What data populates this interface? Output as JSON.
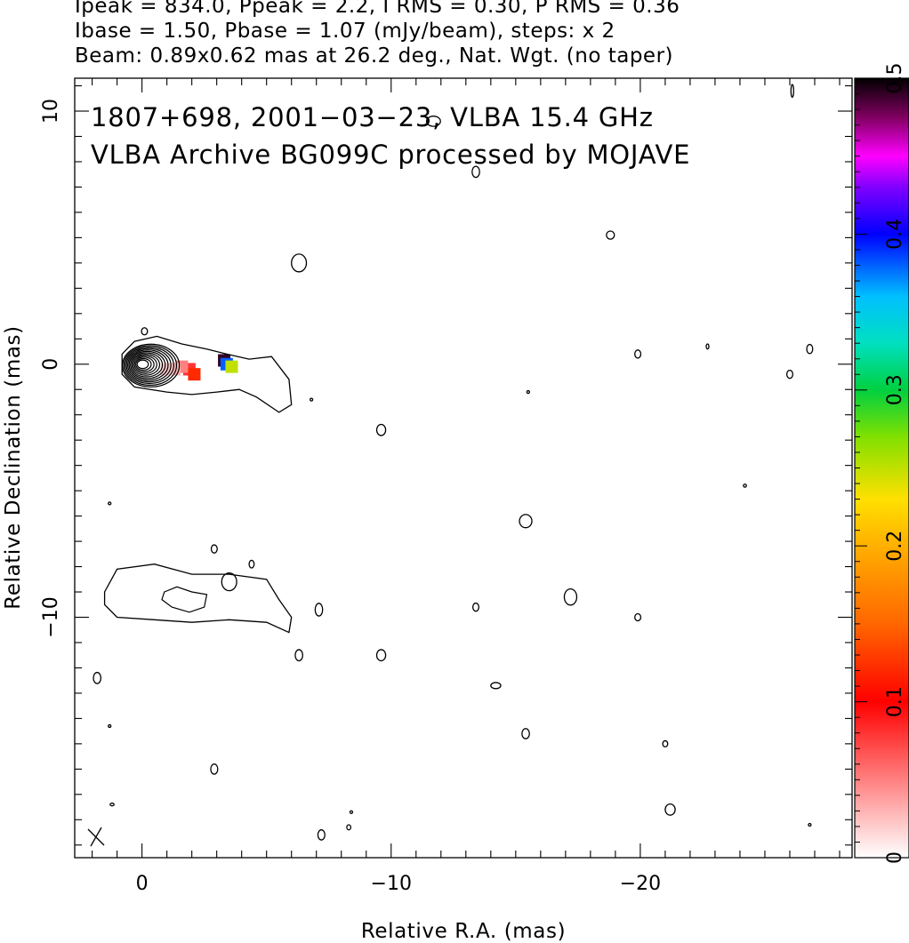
{
  "header": {
    "line1": "Ipeak = 834.0, Ppeak = 2.2, I RMS = 0.30, P RMS = 0.36",
    "line2": "Ibase = 1.50, Pbase = 1.07 (mJy/beam), steps: x 2",
    "line3": "Beam: 0.89x0.62 mas at 26.2 deg., Nat. Wgt. (no taper)"
  },
  "chart_data": {
    "type": "heatmap",
    "annotation_line1": "1807+698, 2001−03−23, VLBA 15.4 GHz",
    "annotation_line2": "VLBA Archive BG099C processed by MOJAVE",
    "xlabel": "Relative R.A. (mas)",
    "ylabel": "Relative Declination (mas)",
    "xlim": [
      2.7,
      -28.5
    ],
    "ylim": [
      -19.5,
      11.3
    ],
    "x_ticks": [
      {
        "value": 0,
        "label": "0"
      },
      {
        "value": -10,
        "label": "−10"
      },
      {
        "value": -20,
        "label": "−20"
      }
    ],
    "y_ticks": [
      {
        "value": 10,
        "label": "10"
      },
      {
        "value": 0,
        "label": "0"
      },
      {
        "value": -10,
        "label": "−10"
      }
    ],
    "colorbar": {
      "range": [
        0,
        0.5
      ],
      "ticks": [
        {
          "value": 0,
          "label": "0"
        },
        {
          "value": 0.1,
          "label": "0.1"
        },
        {
          "value": 0.2,
          "label": "0.2"
        },
        {
          "value": 0.3,
          "label": "0.3"
        },
        {
          "value": 0.4,
          "label": "0.4"
        },
        {
          "value": 0.5,
          "label": "0.5"
        }
      ]
    },
    "core": {
      "x": 0,
      "y": 0
    },
    "core_contour_levels": 12,
    "jet_contour": [
      [
        0.8,
        0.4
      ],
      [
        0.3,
        0.9
      ],
      [
        -0.6,
        1.1
      ],
      [
        -1.6,
        0.8
      ],
      [
        -2.6,
        0.6
      ],
      [
        -3.4,
        0.4
      ],
      [
        -4.3,
        0.2
      ],
      [
        -5.2,
        0.3
      ],
      [
        -5.9,
        -0.6
      ],
      [
        -6.0,
        -1.6
      ],
      [
        -5.5,
        -1.9
      ],
      [
        -4.6,
        -1.3
      ],
      [
        -3.9,
        -1.0
      ],
      [
        -3.0,
        -1.1
      ],
      [
        -2.0,
        -1.2
      ],
      [
        -1.0,
        -1.1
      ],
      [
        0.3,
        -0.9
      ],
      [
        0.8,
        -0.4
      ]
    ],
    "southern_component": {
      "outer": [
        [
          1.5,
          -9.0
        ],
        [
          1.0,
          -8.1
        ],
        [
          -0.5,
          -7.9
        ],
        [
          -2.0,
          -8.3
        ],
        [
          -3.5,
          -8.3
        ],
        [
          -5.0,
          -8.5
        ],
        [
          -5.5,
          -9.3
        ],
        [
          -6.0,
          -10.0
        ],
        [
          -5.9,
          -10.6
        ],
        [
          -5.0,
          -10.2
        ],
        [
          -3.5,
          -10.1
        ],
        [
          -2.0,
          -10.2
        ],
        [
          -0.5,
          -10.1
        ],
        [
          1.0,
          -10.0
        ],
        [
          1.5,
          -9.5
        ]
      ],
      "inner": [
        [
          -0.9,
          -9.0
        ],
        [
          -1.4,
          -8.8
        ],
        [
          -2.0,
          -9.0
        ],
        [
          -2.6,
          -9.1
        ],
        [
          -2.5,
          -9.6
        ],
        [
          -1.9,
          -9.8
        ],
        [
          -1.2,
          -9.6
        ],
        [
          -0.8,
          -9.3
        ]
      ]
    },
    "noise_contours": [
      {
        "x": -11.7,
        "y": 9.6,
        "rx": 0.28,
        "ry": 0.2
      },
      {
        "x": -13.4,
        "y": 7.6,
        "rx": 0.15,
        "ry": 0.22
      },
      {
        "x": -6.3,
        "y": 4.0,
        "rx": 0.3,
        "ry": 0.35
      },
      {
        "x": -18.8,
        "y": 5.1,
        "rx": 0.16,
        "ry": 0.16
      },
      {
        "x": -26.1,
        "y": 10.8,
        "rx": 0.05,
        "ry": 0.25
      },
      {
        "x": -19.9,
        "y": 0.4,
        "rx": 0.12,
        "ry": 0.16
      },
      {
        "x": -26.8,
        "y": 0.6,
        "rx": 0.12,
        "ry": 0.18
      },
      {
        "x": -26.0,
        "y": -0.4,
        "rx": 0.12,
        "ry": 0.16
      },
      {
        "x": -9.6,
        "y": -2.6,
        "rx": 0.18,
        "ry": 0.22
      },
      {
        "x": -15.4,
        "y": -6.2,
        "rx": 0.25,
        "ry": 0.26
      },
      {
        "x": -17.2,
        "y": -9.2,
        "rx": 0.25,
        "ry": 0.32
      },
      {
        "x": -13.4,
        "y": -9.6,
        "rx": 0.12,
        "ry": 0.16
      },
      {
        "x": -19.9,
        "y": -10.0,
        "rx": 0.12,
        "ry": 0.14
      },
      {
        "x": -7.1,
        "y": -9.7,
        "rx": 0.15,
        "ry": 0.25
      },
      {
        "x": -9.6,
        "y": -11.5,
        "rx": 0.18,
        "ry": 0.22
      },
      {
        "x": -14.2,
        "y": -12.7,
        "rx": 0.2,
        "ry": 0.12
      },
      {
        "x": -15.4,
        "y": -14.6,
        "rx": 0.15,
        "ry": 0.2
      },
      {
        "x": -21.0,
        "y": -15.0,
        "rx": 0.1,
        "ry": 0.12
      },
      {
        "x": -2.9,
        "y": -16.0,
        "rx": 0.14,
        "ry": 0.2
      },
      {
        "x": -21.2,
        "y": -17.6,
        "rx": 0.2,
        "ry": 0.22
      },
      {
        "x": -7.2,
        "y": -18.6,
        "rx": 0.14,
        "ry": 0.2
      },
      {
        "x": -2.9,
        "y": -7.3,
        "rx": 0.12,
        "ry": 0.16
      },
      {
        "x": -4.4,
        "y": -7.9,
        "rx": 0.1,
        "ry": 0.15
      },
      {
        "x": -3.5,
        "y": -8.6,
        "rx": 0.3,
        "ry": 0.35
      },
      {
        "x": -0.1,
        "y": 1.3,
        "rx": 0.12,
        "ry": 0.14
      },
      {
        "x": -6.8,
        "y": -1.4,
        "rx": 0.05,
        "ry": 0.05
      },
      {
        "x": -15.5,
        "y": -1.1,
        "rx": 0.04,
        "ry": 0.05
      },
      {
        "x": -24.2,
        "y": -4.8,
        "rx": 0.06,
        "ry": 0.06
      },
      {
        "x": -22.7,
        "y": 0.7,
        "rx": 0.05,
        "ry": 0.1
      },
      {
        "x": 1.3,
        "y": -5.5,
        "rx": 0.04,
        "ry": 0.05
      },
      {
        "x": 1.3,
        "y": -14.3,
        "rx": 0.04,
        "ry": 0.05
      },
      {
        "x": 1.2,
        "y": -17.4,
        "rx": 0.08,
        "ry": 0.05
      },
      {
        "x": -8.4,
        "y": -17.7,
        "rx": 0.05,
        "ry": 0.04
      },
      {
        "x": -8.3,
        "y": -18.3,
        "rx": 0.08,
        "ry": 0.1
      },
      {
        "x": -26.8,
        "y": -18.2,
        "rx": 0.04,
        "ry": 0.04
      },
      {
        "x": -6.3,
        "y": -11.5,
        "rx": 0.15,
        "ry": 0.22
      },
      {
        "x": 1.8,
        "y": -12.4,
        "rx": 0.15,
        "ry": 0.22
      }
    ],
    "polarization_pixels": [
      {
        "x": -1.9,
        "y": -0.2,
        "value": 0.08
      },
      {
        "x": -2.1,
        "y": -0.4,
        "value": 0.12
      },
      {
        "x": -1.6,
        "y": -0.1,
        "value": 0.05
      },
      {
        "x": -1.3,
        "y": -0.2,
        "value": 0.03
      },
      {
        "x": -1.0,
        "y": -0.2,
        "value": 0.02
      },
      {
        "x": -3.3,
        "y": 0.15,
        "value": 0.49
      },
      {
        "x": -3.4,
        "y": 0.0,
        "value": 0.38
      },
      {
        "x": -3.6,
        "y": -0.1,
        "value": 0.25
      }
    ]
  }
}
